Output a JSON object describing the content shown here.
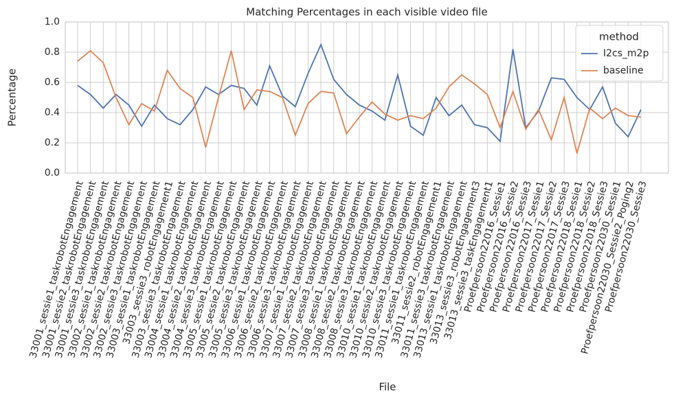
{
  "chart_data": {
    "type": "line",
    "title": "Matching Percentages in each visible video file",
    "x_label": "File",
    "y_label": "Percentage",
    "categories": [
      "33001_sessie1_taskrobotEngagement",
      "33001_sessie2_taskrobotEngagement",
      "33001_sessie3_taskrobotEngagement",
      "33002_sessie1_taskrobotEngagement",
      "33002_sessie2_taskrobotEngagement",
      "33002_sessie3_taskrobotEngagement",
      "33003_sessie1_taskrobotEngagement",
      "33003_sessie3_robotEngagement1",
      "33003_sessie3_taskrobotEngagement",
      "33004_sessie1_taskrobotEngagement",
      "33004_sessie2_taskrobotEngagement",
      "33004_sessie3_taskrobotEngagement",
      "33005_sessie1_taskrobotEngagement",
      "33005_sessie2_taskrobotEngagement",
      "33005_sessie3_taskrobotEngagement",
      "33006_sessie1_taskrobotEngagement",
      "33006_sessie2_taskrobotEngagement",
      "33006_sessie3_taskrobotEngagement",
      "33007_sessie1_taskrobotEngagement",
      "33007_sessie2_taskrobotEngagement",
      "33007_sessie3_taskrobotEngagement",
      "33008_sessie1_taskrobotEngagement",
      "33008_sessie2_taskrobotEngagement",
      "33008_sessie3_taskrobotEngagement",
      "33010_sessie1_taskrobotEngagement",
      "33010_sessie2_taskrobotEngagement",
      "33010_sessie3_taskrobotEngagement",
      "33011_sessie1_taskrobotEngagement",
      "33011_sessie2_robotEngagement1",
      "33011_sessie3_taskrobotEngagement",
      "33013_sessie1_taskrobotEngagement",
      "33013_sessie3_robotEngagement3",
      "33013_sessie3_taskEngagement1",
      "Proefpersoon22016_Sessie1",
      "Proefpersoon22016_Sessie2",
      "Proefpersoon22016_Sessie3",
      "Proefpersoon22017_Sessie1",
      "Proefpersoon22017_Sessie2",
      "Proefpersoon22017_Sessie3",
      "Proefpersoon22018_Sessie1",
      "Proefpersoon22018_Sessie2",
      "Proefpersoon22018_Sessie3",
      "Proefpersoon22030_Sessie1",
      "Proefpersoon22030_Sessie2_Poging2",
      "Proefpersoon22030_Sessie3"
    ],
    "legend_title": "method",
    "legend": "upper right",
    "grid": true,
    "series": [
      {
        "name": "I2cs_m2p",
        "color": "#4c72b0",
        "values": [
          0.58,
          0.52,
          0.43,
          0.52,
          0.45,
          0.31,
          0.45,
          0.36,
          0.32,
          0.42,
          0.57,
          0.52,
          0.58,
          0.56,
          0.45,
          0.71,
          0.51,
          0.44,
          0.66,
          0.85,
          0.62,
          0.52,
          0.45,
          0.41,
          0.35,
          0.65,
          0.31,
          0.25,
          0.5,
          0.38,
          0.45,
          0.32,
          0.3,
          0.21,
          0.82,
          0.3,
          0.41,
          0.63,
          0.62,
          0.5,
          0.42,
          0.57,
          0.33,
          0.24,
          0.42
        ]
      },
      {
        "name": "baseline",
        "color": "#dd8452",
        "values": [
          0.74,
          0.81,
          0.73,
          0.5,
          0.32,
          0.46,
          0.41,
          0.68,
          0.56,
          0.5,
          0.17,
          0.5,
          0.81,
          0.42,
          0.55,
          0.54,
          0.5,
          0.25,
          0.46,
          0.54,
          0.53,
          0.26,
          0.37,
          0.47,
          0.39,
          0.35,
          0.38,
          0.36,
          0.43,
          0.57,
          0.65,
          0.59,
          0.52,
          0.3,
          0.54,
          0.29,
          0.42,
          0.22,
          0.5,
          0.13,
          0.43,
          0.36,
          0.43,
          0.38,
          0.37
        ]
      }
    ],
    "ylim": [
      0,
      1
    ],
    "yticks": [
      {
        "value": 0,
        "label": "0.0"
      },
      {
        "value": 0.2,
        "label": "0.2"
      },
      {
        "value": 0.4,
        "label": "0.4"
      },
      {
        "value": 0.6,
        "label": "0.6"
      },
      {
        "value": 0.8,
        "label": "0.8"
      },
      {
        "value": 1,
        "label": "1.0"
      }
    ]
  }
}
